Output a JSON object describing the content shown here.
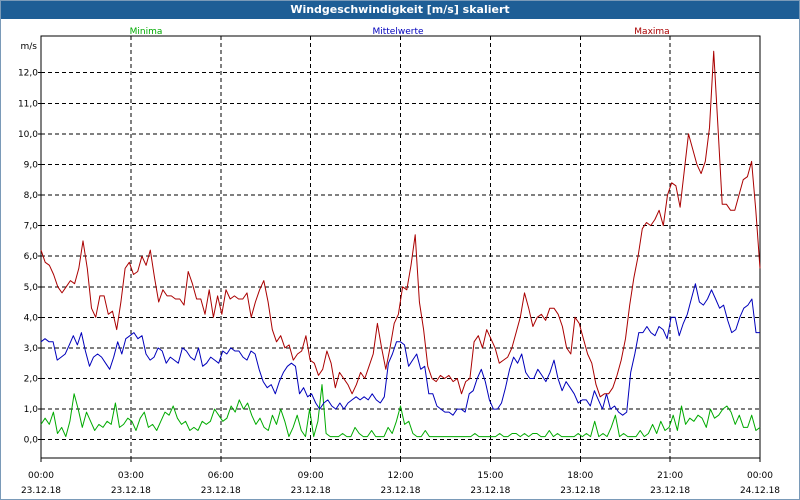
{
  "window": {
    "title": "Windgeschwindigkeit [m/s] skaliert"
  },
  "chart_data": {
    "type": "line",
    "title": "Windgeschwindigkeit [m/s] skaliert",
    "ylabel": "m/s",
    "xlabel": "",
    "ylim": [
      -0.6,
      13.2
    ],
    "xlim": [
      0,
      24
    ],
    "yticks": [
      0,
      1,
      2,
      3,
      4,
      5,
      6,
      7,
      8,
      9,
      10,
      11,
      12
    ],
    "ytick_labels": [
      "0,0",
      "1,0",
      "2,0",
      "3,0",
      "4,0",
      "5,0",
      "6,0",
      "7,0",
      "8,0",
      "9,0",
      "10,0",
      "11,0",
      "12,0"
    ],
    "xticks": [
      0,
      3,
      6,
      9,
      12,
      15,
      18,
      21,
      24
    ],
    "xtick_labels": [
      {
        "time": "00:00",
        "date": "23.12.18"
      },
      {
        "time": "03:00",
        "date": "23.12.18"
      },
      {
        "time": "06:00",
        "date": "23.12.18"
      },
      {
        "time": "09:00",
        "date": "23.12.18"
      },
      {
        "time": "12:00",
        "date": "23.12.18"
      },
      {
        "time": "15:00",
        "date": "23.12.18"
      },
      {
        "time": "18:00",
        "date": "23.12.18"
      },
      {
        "time": "21:00",
        "date": "23.12.18"
      },
      {
        "time": "00:00",
        "date": "24.12.18"
      }
    ],
    "grid": true,
    "x_step_hours": 0.16667,
    "series": [
      {
        "name": "Minima",
        "color": "#00aa00",
        "values": [
          0.5,
          0.7,
          0.5,
          0.9,
          0.2,
          0.4,
          0.1,
          0.6,
          1.5,
          1.0,
          0.4,
          0.9,
          0.6,
          0.3,
          0.5,
          0.4,
          0.6,
          0.5,
          1.2,
          0.4,
          0.5,
          0.7,
          0.6,
          0.3,
          0.7,
          0.9,
          0.4,
          0.5,
          0.3,
          0.6,
          0.9,
          0.8,
          1.1,
          0.7,
          0.5,
          0.6,
          0.3,
          0.4,
          0.3,
          0.6,
          0.5,
          0.6,
          1.0,
          0.8,
          0.6,
          0.7,
          1.1,
          0.9,
          1.3,
          1.0,
          1.2,
          0.8,
          0.5,
          0.7,
          0.4,
          0.3,
          0.8,
          0.5,
          1.0,
          0.6,
          0.1,
          0.4,
          0.8,
          0.3,
          0.1,
          1.0,
          0.1,
          0.6,
          1.8,
          0.2,
          0.1,
          0.1,
          0.1,
          0.2,
          0.1,
          0.1,
          0.4,
          0.2,
          0.1,
          0.1,
          0.3,
          0.1,
          0.1,
          0.1,
          0.4,
          0.2,
          0.6,
          1.1,
          0.5,
          0.6,
          0.2,
          0.1,
          0.1,
          0.3,
          0.1,
          0.1,
          0.1,
          0.1,
          0.1,
          0.1,
          0.1,
          0.1,
          0.1,
          0.1,
          0.1,
          0.2,
          0.1,
          0.1,
          0.1,
          0.1,
          0.1,
          0.2,
          0.1,
          0.1,
          0.2,
          0.2,
          0.1,
          0.2,
          0.1,
          0.2,
          0.2,
          0.1,
          0.1,
          0.3,
          0.1,
          0.2,
          0.1,
          0.1,
          0.1,
          0.1,
          0.2,
          0.1,
          0.2,
          0.1,
          0.6,
          0.1,
          0.2,
          0.1,
          0.4,
          0.8,
          0.1,
          0.2,
          0.1,
          0.1,
          0.1,
          0.3,
          0.1,
          0.2,
          0.5,
          0.2,
          0.6,
          0.3,
          0.4,
          0.8,
          0.3,
          1.1,
          0.5,
          0.7,
          0.6,
          0.8,
          0.7,
          0.4,
          1.0,
          0.7,
          0.8,
          1.0,
          1.1,
          0.9,
          0.5,
          0.8,
          0.4,
          0.4,
          0.8,
          0.3,
          0.4
        ]
      },
      {
        "name": "Mittelwerte",
        "color": "#0000bb",
        "values": [
          3.2,
          3.3,
          3.2,
          3.2,
          2.6,
          2.7,
          2.8,
          3.1,
          3.4,
          3.1,
          3.5,
          2.9,
          2.4,
          2.7,
          2.8,
          2.7,
          2.5,
          2.3,
          2.7,
          3.2,
          2.8,
          3.3,
          3.4,
          3.5,
          3.3,
          3.4,
          2.8,
          2.6,
          2.7,
          3.0,
          2.9,
          2.5,
          2.7,
          2.6,
          2.5,
          3.0,
          2.9,
          2.7,
          2.6,
          3.0,
          2.4,
          2.5,
          2.7,
          2.6,
          2.5,
          2.9,
          2.8,
          3.0,
          2.9,
          2.9,
          2.7,
          2.6,
          2.9,
          2.8,
          2.3,
          1.9,
          1.7,
          1.8,
          1.5,
          1.9,
          2.2,
          2.4,
          2.5,
          2.4,
          1.5,
          1.7,
          1.4,
          1.5,
          1.2,
          1.0,
          1.2,
          1.3,
          1.1,
          1.0,
          1.2,
          1.0,
          1.2,
          1.3,
          1.4,
          1.3,
          1.4,
          1.3,
          1.5,
          1.3,
          1.2,
          1.4,
          2.5,
          2.8,
          3.2,
          3.2,
          3.1,
          2.4,
          2.6,
          2.8,
          2.3,
          2.4,
          1.5,
          1.5,
          1.1,
          1.0,
          0.9,
          0.9,
          0.8,
          1.0,
          1.0,
          0.9,
          1.5,
          1.6,
          2.0,
          2.3,
          1.9,
          1.3,
          1.0,
          1.0,
          1.2,
          1.7,
          2.3,
          2.7,
          2.5,
          2.8,
          2.2,
          2.0,
          2.0,
          2.3,
          2.1,
          1.9,
          2.2,
          2.6,
          2.0,
          1.6,
          1.9,
          1.7,
          1.5,
          1.2,
          1.3,
          1.3,
          1.1,
          1.6,
          1.3,
          1.0,
          1.5,
          1.0,
          1.1,
          0.9,
          0.8,
          0.9,
          2.2,
          2.8,
          3.5,
          3.5,
          3.7,
          3.5,
          3.4,
          3.7,
          3.6,
          3.3,
          4.0,
          4.0,
          3.4,
          3.8,
          4.1,
          4.6,
          5.1,
          4.5,
          4.4,
          4.6,
          4.9,
          4.6,
          4.3,
          4.4,
          3.9,
          3.5,
          3.6,
          4.0,
          4.3,
          4.4,
          4.6,
          3.5,
          3.5
        ]
      },
      {
        "name": "Maxima",
        "color": "#aa0000",
        "values": [
          6.2,
          5.8,
          5.7,
          5.4,
          5.0,
          4.8,
          5.0,
          5.2,
          5.1,
          5.6,
          6.5,
          5.6,
          4.3,
          4.0,
          4.7,
          4.7,
          4.1,
          4.2,
          3.6,
          4.5,
          5.6,
          5.8,
          5.4,
          5.5,
          6.0,
          5.7,
          6.2,
          5.3,
          4.5,
          4.9,
          4.7,
          4.7,
          4.6,
          4.6,
          4.4,
          5.5,
          5.1,
          4.6,
          4.6,
          4.1,
          4.9,
          4.0,
          4.7,
          4.1,
          4.9,
          4.6,
          4.7,
          4.6,
          4.6,
          4.8,
          4.0,
          4.5,
          4.9,
          5.2,
          4.5,
          3.6,
          3.2,
          3.4,
          3.0,
          3.1,
          2.6,
          2.8,
          2.9,
          3.4,
          2.6,
          2.5,
          2.1,
          2.3,
          2.9,
          2.5,
          1.7,
          2.2,
          2.0,
          1.8,
          1.5,
          1.8,
          2.2,
          2.0,
          2.4,
          2.8,
          3.8,
          3.0,
          2.3,
          3.0,
          3.8,
          4.1,
          5.0,
          4.9,
          5.7,
          6.7,
          4.5,
          3.6,
          2.4,
          2.0,
          1.9,
          2.1,
          2.0,
          2.1,
          1.9,
          2.0,
          1.5,
          1.9,
          2.0,
          3.2,
          3.4,
          3.0,
          3.6,
          3.3,
          3.0,
          2.5,
          2.6,
          2.7,
          3.0,
          3.5,
          4.0,
          4.8,
          4.3,
          3.7,
          4.0,
          4.1,
          3.9,
          4.3,
          4.3,
          4.1,
          3.7,
          3.0,
          2.8,
          4.0,
          3.8,
          3.3,
          2.8,
          2.5,
          1.8,
          1.4,
          1.5,
          1.5,
          1.7,
          2.1,
          2.6,
          3.3,
          4.4,
          5.3,
          6.0,
          6.9,
          7.1,
          7.0,
          7.2,
          7.5,
          7.0,
          8.0,
          8.4,
          8.3,
          7.6,
          8.8,
          10.0,
          9.5,
          9.0,
          8.7,
          9.1,
          10.2,
          12.7,
          10.2,
          7.7,
          7.7,
          7.5,
          7.5,
          8.0,
          8.5,
          8.6,
          9.1,
          7.5,
          5.6
        ]
      }
    ]
  }
}
